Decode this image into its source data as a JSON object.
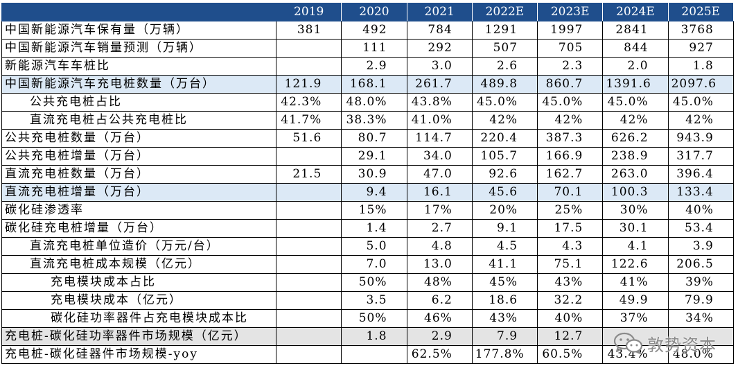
{
  "header": {
    "years": [
      "2019",
      "2020",
      "2021",
      "2022E",
      "2023E",
      "2024E",
      "2025E"
    ]
  },
  "rows": [
    {
      "label": "中国新能源汽车保有量（万辆）",
      "values": [
        "381",
        "492",
        "784",
        "1291",
        "1997",
        "2841",
        "3768"
      ]
    },
    {
      "label": "中国新能源汽车销量预测（万辆）",
      "values": [
        "",
        "111",
        "292",
        "507",
        "705",
        "844",
        "927"
      ]
    },
    {
      "label": "新能源汽车车桩比",
      "values": [
        "",
        "2.9",
        "3.0",
        "2.6",
        "2.3",
        "2.0",
        "1.8"
      ]
    },
    {
      "label": "中国新能源汽车充电桩数量（万台）",
      "values": [
        "121.9",
        "168.1",
        "261.7",
        "489.8",
        "860.7",
        "1391.6",
        "2097.6"
      ]
    },
    {
      "label": "公共充电桩占比",
      "values": [
        "42.3%",
        "48.0%",
        "43.8%",
        "45.0%",
        "45.0%",
        "45.0%",
        "45.0%"
      ]
    },
    {
      "label": "直流充电桩占公共充电桩比",
      "values": [
        "41.7%",
        "38.3%",
        "41.0%",
        "42%",
        "42%",
        "42%",
        "42%"
      ]
    },
    {
      "label": "公共充电桩数量（万台）",
      "values": [
        "51.6",
        "80.7",
        "114.7",
        "220.4",
        "387.3",
        "626.2",
        "943.9"
      ]
    },
    {
      "label": "公共充电桩增量（万台）",
      "values": [
        "",
        "29.1",
        "34.0",
        "105.7",
        "166.9",
        "238.9",
        "317.7"
      ]
    },
    {
      "label": "直流充电桩数量（万台）",
      "values": [
        "21.5",
        "30.9",
        "47.0",
        "92.6",
        "162.7",
        "263.0",
        "396.4"
      ]
    },
    {
      "label": "直流充电桩增量（万台）",
      "values": [
        "",
        "9.4",
        "16.1",
        "45.6",
        "70.1",
        "100.3",
        "133.4"
      ]
    },
    {
      "label": "碳化硅渗透率",
      "values": [
        "",
        "15%",
        "17%",
        "20%",
        "25%",
        "30%",
        "40%"
      ]
    },
    {
      "label": "碳化硅充电桩增量（万台）",
      "values": [
        "",
        "1.4",
        "2.7",
        "9.1",
        "17.5",
        "30.1",
        "53.4"
      ]
    },
    {
      "label": "直流充电桩单位造价（万元/台）",
      "values": [
        "",
        "5.0",
        "4.8",
        "4.5",
        "4.3",
        "4.1",
        "3.9"
      ]
    },
    {
      "label": "直流充电桩成本规模（亿元）",
      "values": [
        "",
        "7.0",
        "13.0",
        "41.1",
        "75.1",
        "122.6",
        "206.5"
      ]
    },
    {
      "label": "充电模块成本占比",
      "values": [
        "",
        "50%",
        "48%",
        "45%",
        "43%",
        "41%",
        "39%"
      ]
    },
    {
      "label": "充电模块成本（亿元）",
      "values": [
        "",
        "3.5",
        "6.2",
        "18.6",
        "32.2",
        "49.9",
        "79.9"
      ]
    },
    {
      "label": "碳化硅功率器件占充电模块成本比",
      "values": [
        "",
        "50%",
        "46%",
        "43%",
        "40%",
        "37%",
        "34%"
      ]
    },
    {
      "label": "充电桩-碳化硅功率器件市场规模（亿元）",
      "values": [
        "",
        "1.8",
        "2.9",
        "7.9",
        "12.7",
        "",
        ""
      ]
    },
    {
      "label": "充电桩-碳化硅器件市场规模-yoy",
      "values": [
        "",
        "",
        "62.5%",
        "177.8%",
        "60.5%",
        "43.4%",
        "48.0%"
      ]
    }
  ],
  "watermark": {
    "text": "敦势资本",
    "icon": "wechat-icon"
  },
  "colors": {
    "header_bg": "#1f4e8c",
    "highlight_blue": "#dce9f6",
    "highlight_gray": "#e4e4e4"
  }
}
